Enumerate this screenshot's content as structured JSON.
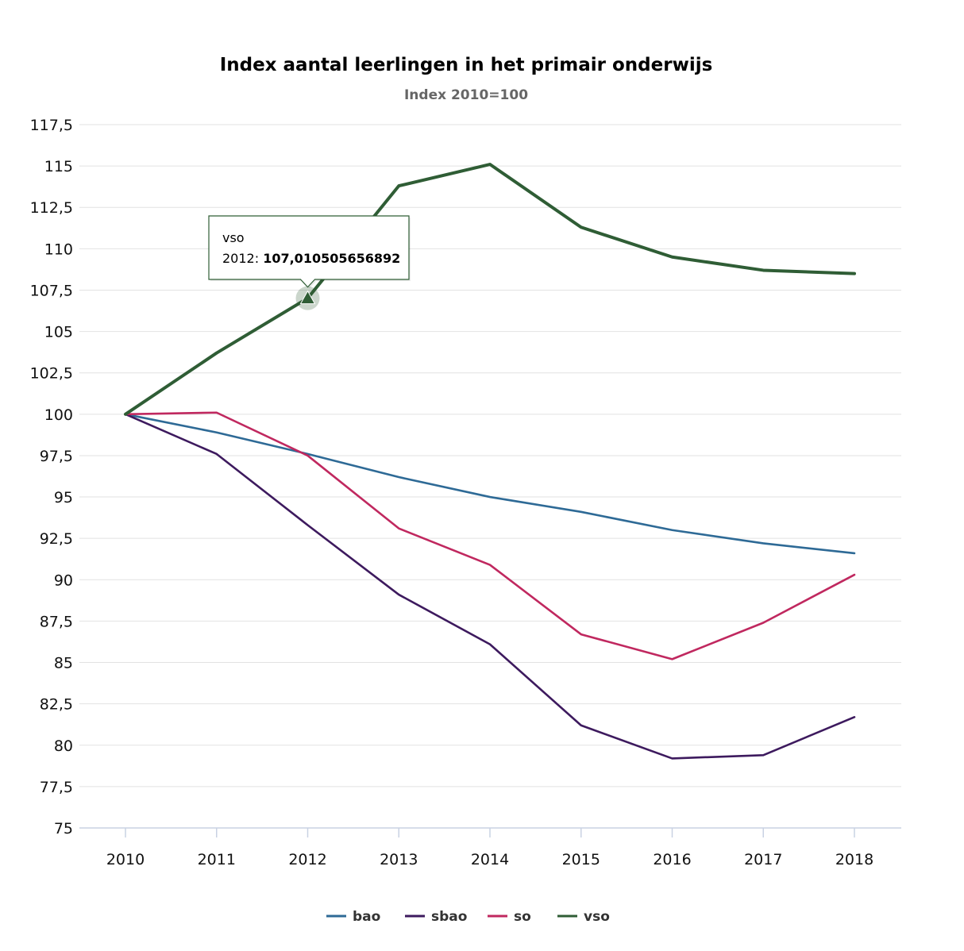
{
  "chart_data": {
    "type": "line",
    "title": "Index aantal leerlingen in het primair onderwijs",
    "subtitle": "Index 2010=100",
    "xlabel": "",
    "ylabel": "",
    "x": [
      "2010",
      "2011",
      "2012",
      "2013",
      "2014",
      "2015",
      "2016",
      "2017",
      "2018"
    ],
    "ylim": [
      75,
      117.5
    ],
    "yticks": [
      75,
      77.5,
      80,
      82.5,
      85,
      87.5,
      90,
      92.5,
      95,
      97.5,
      100,
      102.5,
      105,
      107.5,
      110,
      112.5,
      115,
      117.5
    ],
    "ytick_labels": [
      "75",
      "77,5",
      "80",
      "82,5",
      "85",
      "87,5",
      "90",
      "92,5",
      "95",
      "97,5",
      "100",
      "102,5",
      "105",
      "107,5",
      "110",
      "112,5",
      "115",
      "117,5"
    ],
    "grid": true,
    "legend_position": "bottom-center",
    "series": [
      {
        "name": "bao",
        "color": "#2e6a96",
        "values": [
          100,
          98.9,
          97.6,
          96.2,
          95.0,
          94.1,
          93.0,
          92.2,
          91.6
        ]
      },
      {
        "name": "sbao",
        "color": "#3d1a5e",
        "values": [
          100,
          97.6,
          93.3,
          89.1,
          86.1,
          81.2,
          79.2,
          79.4,
          81.7
        ]
      },
      {
        "name": "so",
        "color": "#c0285f",
        "values": [
          100,
          100.1,
          97.5,
          93.1,
          90.9,
          86.7,
          85.2,
          87.4,
          90.3
        ]
      },
      {
        "name": "vso",
        "color": "#2f5d35",
        "values": [
          100,
          103.7,
          107.010505656892,
          113.8,
          115.1,
          111.3,
          109.5,
          108.7,
          108.5
        ]
      }
    ],
    "tooltip": {
      "series_name": "vso",
      "x_label": "2012:",
      "value_text": "107,010505656892",
      "point_index": 2
    }
  }
}
